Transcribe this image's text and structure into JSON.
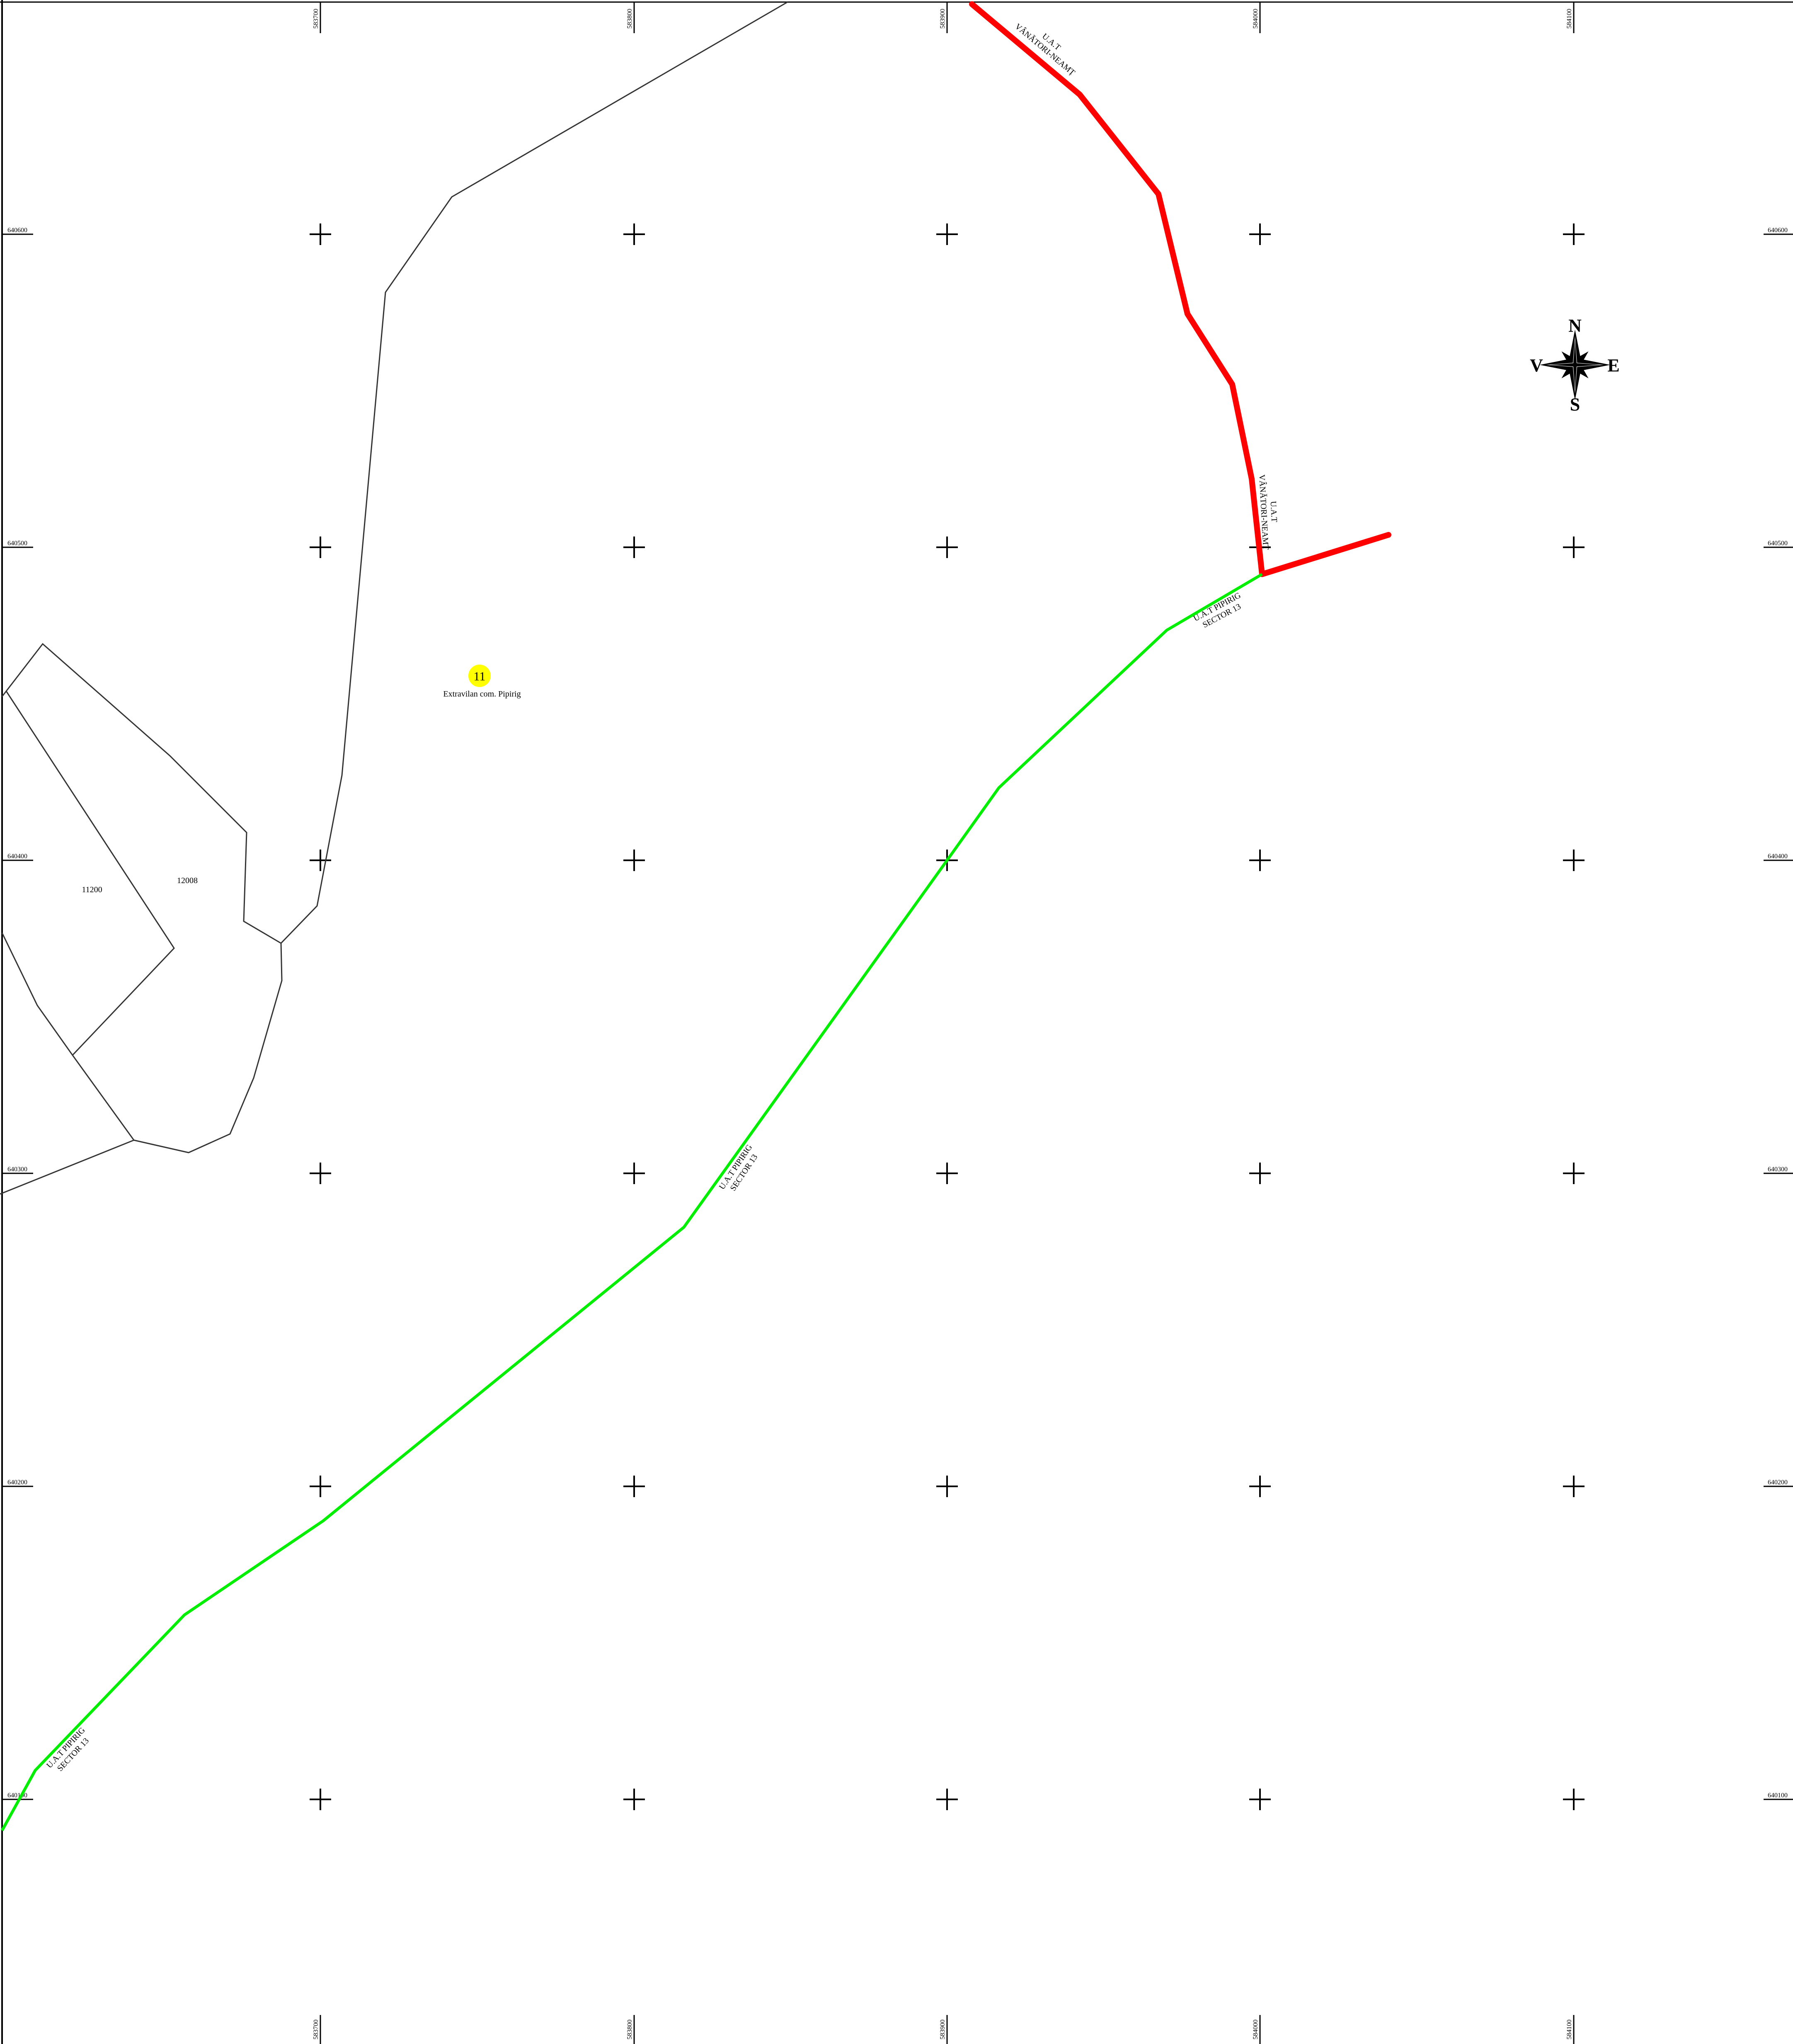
{
  "map": {
    "grid_x_labels": [
      "583700",
      "583800",
      "583900",
      "584000",
      "584100"
    ],
    "grid_y_labels": [
      "640600",
      "640500",
      "640400",
      "640300",
      "640200",
      "640100"
    ],
    "colors": {
      "background": "#ffffff",
      "parcel_lines": "#333333",
      "boundary_vanatori": "#ff0000",
      "boundary_pipirig": "#00ee00",
      "marker_fill": "#ffff00",
      "grid_crosses": "#000000"
    },
    "compass": {
      "north": "N",
      "south": "S",
      "east": "E",
      "west": "V"
    },
    "marker": {
      "number": "11",
      "label": "Extravilan com. Pipirig"
    },
    "parcels": [
      {
        "id": "11200"
      },
      {
        "id": "12008"
      }
    ],
    "boundaries": {
      "vanatori": {
        "label_line1": "U.A.T",
        "label_line2": "VÂNĂTORI-NEAMȚ"
      },
      "pipirig": {
        "label_line1": "U.A.T PIPIRIG",
        "label_line2": "SECTOR 13"
      }
    }
  }
}
